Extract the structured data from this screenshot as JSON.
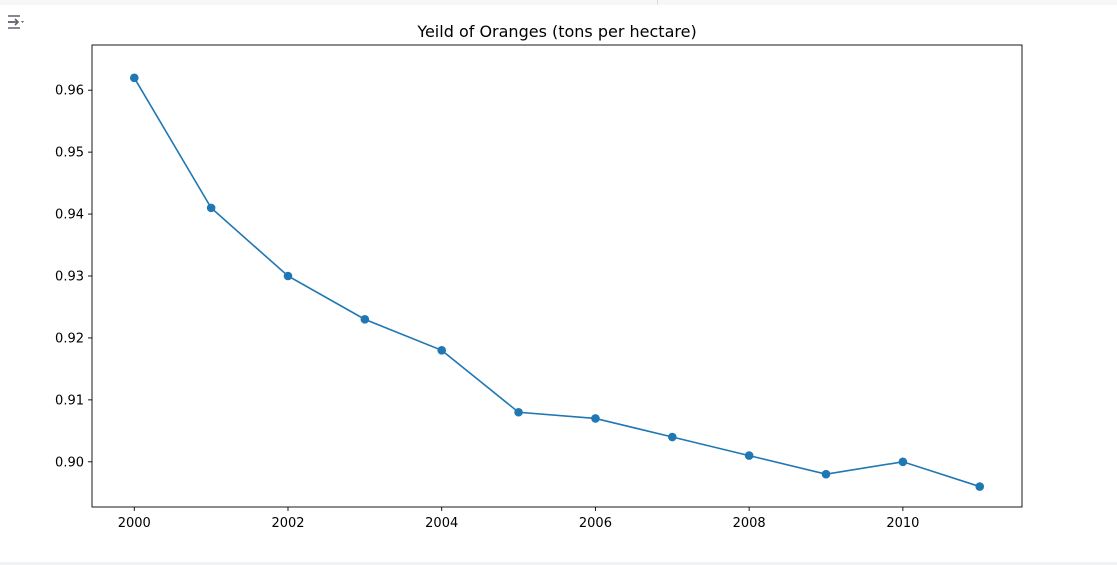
{
  "cell": {
    "output_icon": "output-options-icon"
  },
  "chart_data": {
    "type": "line",
    "title": "Yeild of Oranges (tons per hectare)",
    "xlabel": "",
    "ylabel": "",
    "x": [
      2000,
      2001,
      2002,
      2003,
      2004,
      2005,
      2006,
      2007,
      2008,
      2009,
      2010,
      2011
    ],
    "series": [
      {
        "values": [
          0.962,
          0.941,
          0.93,
          0.923,
          0.918,
          0.908,
          0.907,
          0.904,
          0.901,
          0.898,
          0.9,
          0.896
        ],
        "color": "#1f77b4",
        "marker": "circle"
      }
    ],
    "xlim": [
      1999.45,
      2011.55
    ],
    "ylim": [
      0.8927,
      0.9673
    ],
    "xticks": [
      "2000",
      "2002",
      "2004",
      "2006",
      "2008",
      "2010"
    ],
    "yticks": [
      "0.90",
      "0.91",
      "0.92",
      "0.93",
      "0.94",
      "0.95",
      "0.96"
    ],
    "grid": false,
    "legend": "none"
  }
}
